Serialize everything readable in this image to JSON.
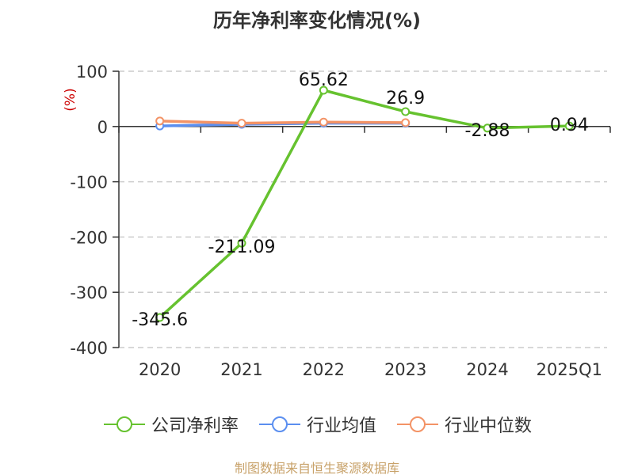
{
  "source_text": "制图数据来自恒生聚源数据库",
  "colors": {
    "company": "#66c22f",
    "industry_avg": "#5b8ff0",
    "industry_median": "#f39366",
    "grid": "#cccccc",
    "axis": "#333333",
    "unit": "#cc0000"
  },
  "chart_data": {
    "type": "line",
    "title": "历年净利率变化情况(%)",
    "ylabel": "(%)",
    "categories": [
      "2020",
      "2021",
      "2022",
      "2023",
      "2024",
      "2025Q1"
    ],
    "y_ticks": [
      "100",
      "0",
      "-100",
      "-200",
      "-300",
      "-400"
    ],
    "ylim": [
      -400,
      100
    ],
    "grid": true,
    "legend_position": "bottom",
    "series": [
      {
        "name": "公司净利率",
        "color": "#66c22f",
        "values": [
          -345.6,
          -211.09,
          65.62,
          26.9,
          -2.88,
          0.94
        ],
        "labels": [
          "-345.6",
          "-211.09",
          "65.62",
          "26.9",
          "-2.88",
          "0.94"
        ]
      },
      {
        "name": "行业均值",
        "color": "#5b8ff0",
        "values": [
          1,
          4,
          6,
          6,
          null,
          null
        ],
        "labels": []
      },
      {
        "name": "行业中位数",
        "color": "#f39366",
        "values": [
          10,
          6,
          8,
          7,
          null,
          null
        ],
        "labels": []
      }
    ]
  }
}
